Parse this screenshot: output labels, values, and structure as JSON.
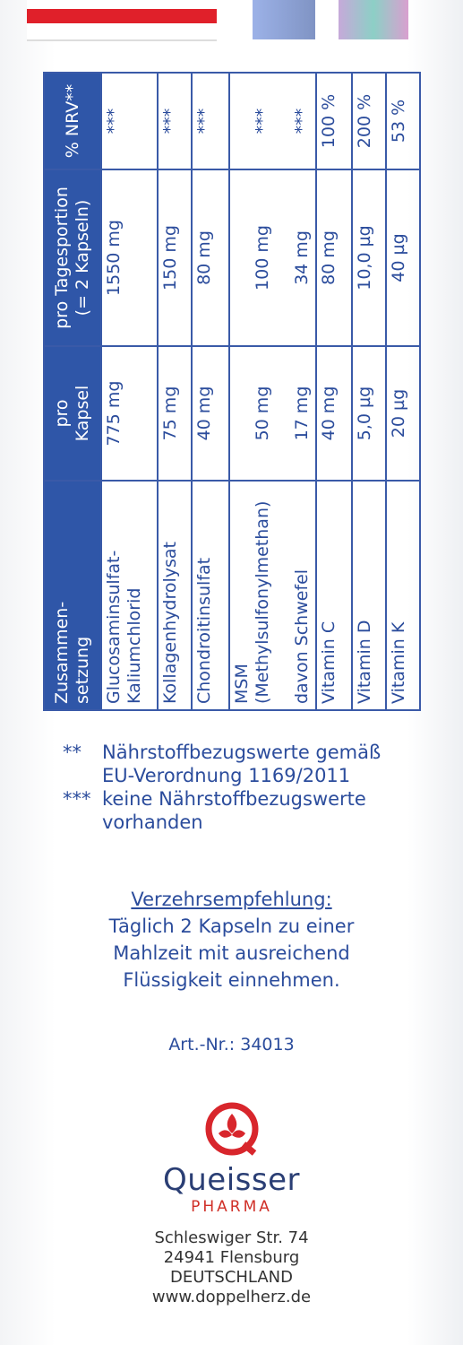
{
  "table": {
    "header": [
      [
        "Zusammen-",
        "setzung"
      ],
      [
        "pro",
        "Kapsel"
      ],
      [
        "pro Tagesportion",
        "(= 2 Kapseln)"
      ],
      [
        "% NRV**"
      ]
    ],
    "rows": [
      [
        [
          "Glucosaminsulfat-",
          "Kaliumchlorid"
        ],
        [
          "775 mg"
        ],
        [
          "1550 mg"
        ],
        [
          "***"
        ]
      ],
      [
        [
          "Kollagenhydrolysat"
        ],
        [
          "75 mg"
        ],
        [
          "150 mg"
        ],
        [
          "***"
        ]
      ],
      [
        [
          "Chondroitinsulfat"
        ],
        [
          "40 mg"
        ],
        [
          "80 mg"
        ],
        [
          "***"
        ]
      ],
      [
        [
          "MSM",
          "(Methylsulfonylmethan)"
        ],
        [
          "",
          "50 mg"
        ],
        [
          "",
          "100 mg"
        ],
        [
          "",
          "***"
        ]
      ],
      [
        [
          "davon Schwefel"
        ],
        [
          "17 mg"
        ],
        [
          "34 mg"
        ],
        [
          "***"
        ]
      ],
      [
        [
          "Vitamin C"
        ],
        [
          "40 mg"
        ],
        [
          "80 mg"
        ],
        [
          "100 %"
        ]
      ],
      [
        [
          "Vitamin D"
        ],
        [
          "5,0 µg"
        ],
        [
          "10,0 µg"
        ],
        [
          "200 %"
        ]
      ],
      [
        [
          "Vitamin K"
        ],
        [
          "20 µg"
        ],
        [
          "40 µg"
        ],
        [
          "53 %"
        ]
      ]
    ]
  },
  "footnotes": [
    {
      "mark": "**",
      "text": [
        "Nährstoffbezugswerte gemäß",
        "EU-Verordnung 1169/2011"
      ]
    },
    {
      "mark": "***",
      "text": [
        "keine Nährstoffbezugswerte",
        "vorhanden"
      ]
    }
  ],
  "recommendation": {
    "title": "Verzehrsempfehlung:",
    "lines": [
      "Täglich 2 Kapseln zu einer",
      "Mahlzeit mit ausreichend",
      "Flüssigkeit einnehmen."
    ]
  },
  "article": "Art.-Nr.: 34013",
  "brand": {
    "name": "Queisser",
    "sub": "PHARMA"
  },
  "address": [
    "Schleswiger Str. 74",
    "24941 Flensburg",
    "DEUTSCHLAND",
    "www.doppelherz.de"
  ]
}
